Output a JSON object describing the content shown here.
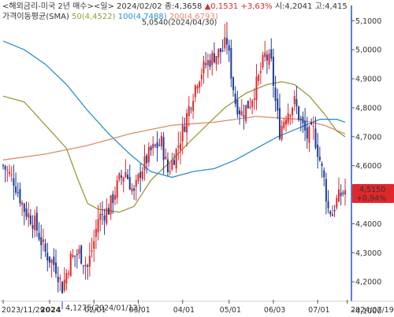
{
  "header": {
    "line1_prefix": "<해외금리-미국 2년 매수><일> 2024/02/02 종:4,3658",
    "change_abs": "0,1531",
    "change_pct": "+3,63%",
    "open_label": "시:4,2041",
    "high_label": "고:4,415",
    "indicator_label": "가격이동평균(SMA)",
    "ma50_label": "50(4,4522)",
    "ma100_label": "100(4,7488)",
    "ma200_label": "200(4,6793)"
  },
  "annotations": {
    "high_point": "5,0540(2024/04/30)",
    "low_point": "4,1275(2024/01/12)"
  },
  "price_tag": {
    "value": "4,5150",
    "pct": "+0,94%"
  },
  "colors": {
    "up": "#e0282c",
    "down": "#1e3c96",
    "ma50": "#9a9a3a",
    "ma100": "#2a8fd0",
    "ma200": "#e08a6a",
    "tag_bg": "#e0282c",
    "axis_line": "#2255cc"
  },
  "chart_data": {
    "type": "candlestick",
    "ylim": [
      4.1,
      5.12
    ],
    "yticks": [
      {
        "v": 5.1,
        "label": "5,1000"
      },
      {
        "v": 5.0,
        "label": "5,0000"
      },
      {
        "v": 4.9,
        "label": "4,9000"
      },
      {
        "v": 4.8,
        "label": "4,8000"
      },
      {
        "v": 4.7,
        "label": "4,7000"
      },
      {
        "v": 4.6,
        "label": "4,6000"
      },
      {
        "v": 4.5,
        "label": "4,5000"
      },
      {
        "v": 4.4,
        "label": "4,4000"
      },
      {
        "v": 4.3,
        "label": "4,3000"
      },
      {
        "v": 4.2,
        "label": "4,2000"
      },
      {
        "v": 4.1,
        "label": "4,1000"
      }
    ],
    "xticks": [
      {
        "i": 0,
        "label": "2023/11/29",
        "bold": false
      },
      {
        "i": 22,
        "label": "2024",
        "bold": true
      },
      {
        "i": 43,
        "label": "02/01",
        "bold": false
      },
      {
        "i": 64,
        "label": "03/01",
        "bold": false
      },
      {
        "i": 85,
        "label": "04/01",
        "bold": false
      },
      {
        "i": 107,
        "label": "05/01",
        "bold": false
      },
      {
        "i": 128,
        "label": "06/03",
        "bold": false
      },
      {
        "i": 149,
        "label": "07/01",
        "bold": false
      },
      {
        "i": 163,
        "label": "2024/07/19",
        "bold": false
      }
    ],
    "candle_count": 163,
    "close_points": [
      [
        0,
        4.6
      ],
      [
        5,
        4.55
      ],
      [
        10,
        4.45
      ],
      [
        15,
        4.4
      ],
      [
        20,
        4.3
      ],
      [
        25,
        4.25
      ],
      [
        28,
        4.18
      ],
      [
        32,
        4.28
      ],
      [
        36,
        4.3
      ],
      [
        40,
        4.25
      ],
      [
        43,
        4.34
      ],
      [
        45,
        4.42
      ],
      [
        50,
        4.45
      ],
      [
        55,
        4.55
      ],
      [
        58,
        4.58
      ],
      [
        62,
        4.5
      ],
      [
        65,
        4.58
      ],
      [
        70,
        4.65
      ],
      [
        75,
        4.68
      ],
      [
        78,
        4.58
      ],
      [
        82,
        4.65
      ],
      [
        85,
        4.72
      ],
      [
        88,
        4.8
      ],
      [
        92,
        4.9
      ],
      [
        96,
        4.95
      ],
      [
        100,
        4.98
      ],
      [
        104,
        5.0
      ],
      [
        106,
        5.03
      ],
      [
        108,
        4.92
      ],
      [
        110,
        4.82
      ],
      [
        113,
        4.78
      ],
      [
        117,
        4.82
      ],
      [
        121,
        4.9
      ],
      [
        124,
        4.98
      ],
      [
        127,
        4.95
      ],
      [
        129,
        4.82
      ],
      [
        131,
        4.72
      ],
      [
        134,
        4.78
      ],
      [
        138,
        4.82
      ],
      [
        141,
        4.75
      ],
      [
        144,
        4.7
      ],
      [
        147,
        4.72
      ],
      [
        150,
        4.62
      ],
      [
        152,
        4.55
      ],
      [
        154,
        4.45
      ],
      [
        156,
        4.44
      ],
      [
        158,
        4.48
      ],
      [
        160,
        4.5
      ],
      [
        162,
        4.515
      ]
    ],
    "series": [
      {
        "name": "50",
        "points": [
          [
            0,
            4.84
          ],
          [
            10,
            4.82
          ],
          [
            20,
            4.74
          ],
          [
            30,
            4.66
          ],
          [
            35,
            4.56
          ],
          [
            40,
            4.47
          ],
          [
            45,
            4.45
          ],
          [
            55,
            4.44
          ],
          [
            62,
            4.46
          ],
          [
            70,
            4.55
          ],
          [
            80,
            4.62
          ],
          [
            88,
            4.68
          ],
          [
            95,
            4.73
          ],
          [
            105,
            4.8
          ],
          [
            115,
            4.85
          ],
          [
            125,
            4.88
          ],
          [
            132,
            4.89
          ],
          [
            138,
            4.88
          ],
          [
            145,
            4.84
          ],
          [
            152,
            4.78
          ],
          [
            158,
            4.72
          ],
          [
            162,
            4.7
          ]
        ]
      },
      {
        "name": "100",
        "points": [
          [
            0,
            5.03
          ],
          [
            10,
            5.0
          ],
          [
            20,
            4.95
          ],
          [
            30,
            4.88
          ],
          [
            40,
            4.79
          ],
          [
            50,
            4.71
          ],
          [
            60,
            4.64
          ],
          [
            70,
            4.58
          ],
          [
            80,
            4.56
          ],
          [
            90,
            4.58
          ],
          [
            100,
            4.59
          ],
          [
            110,
            4.62
          ],
          [
            120,
            4.66
          ],
          [
            130,
            4.7
          ],
          [
            140,
            4.73
          ],
          [
            150,
            4.76
          ],
          [
            158,
            4.76
          ],
          [
            162,
            4.75
          ]
        ]
      },
      {
        "name": "200",
        "points": [
          [
            0,
            4.62
          ],
          [
            20,
            4.64
          ],
          [
            40,
            4.67
          ],
          [
            60,
            4.71
          ],
          [
            80,
            4.74
          ],
          [
            100,
            4.75
          ],
          [
            120,
            4.77
          ],
          [
            140,
            4.76
          ],
          [
            152,
            4.74
          ],
          [
            162,
            4.71
          ]
        ]
      }
    ]
  }
}
